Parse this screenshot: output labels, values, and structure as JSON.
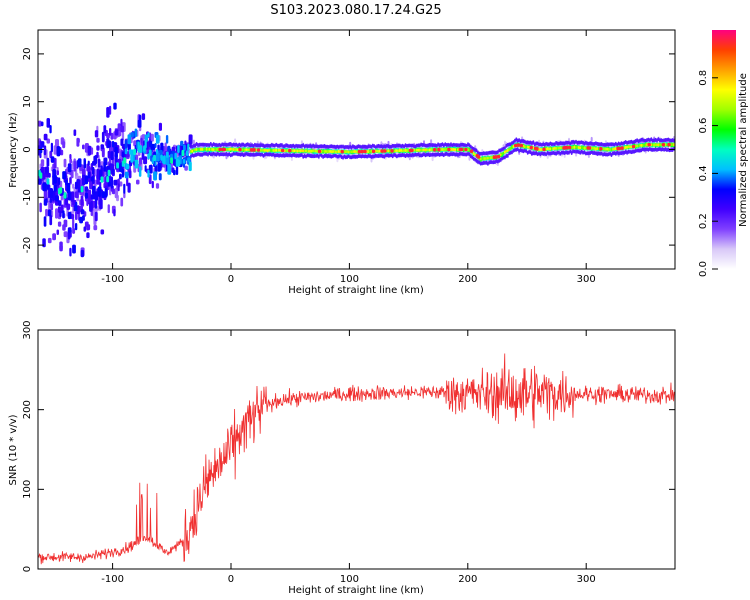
{
  "title": "S103.2023.080.17.24.G25",
  "colors": {
    "snr_line": "#f03030",
    "frame": "#000000"
  },
  "chart_data": [
    {
      "type": "heatmap",
      "xlabel": "Height of straight line (km)",
      "ylabel": "Frequency (Hz)",
      "xlim": [
        -163,
        375
      ],
      "ylim": [
        -25,
        25
      ],
      "xticks": [
        -100,
        0,
        100,
        200,
        300
      ],
      "yticks": [
        -20,
        -10,
        0,
        10,
        20
      ],
      "colorbar": {
        "label": "Normalized spectral amplitude",
        "range": [
          0,
          1
        ],
        "ticks": [
          "0.0",
          "0.2",
          "0.4",
          "0.6",
          "0.8"
        ],
        "colormap": [
          "#ffffff",
          "#d8c8f8",
          "#8040ff",
          "#4000ff",
          "#0000ff",
          "#00c0ff",
          "#00ffc0",
          "#00ff00",
          "#a0ff00",
          "#ffff00",
          "#ffa000",
          "#ff4000",
          "#ff0080"
        ]
      },
      "ridge": [
        {
          "x": -163,
          "y": -5
        },
        {
          "x": -140,
          "y": -10
        },
        {
          "x": -120,
          "y": -8
        },
        {
          "x": -100,
          "y": -4
        },
        {
          "x": -80,
          "y": 0
        },
        {
          "x": -65,
          "y": -1
        },
        {
          "x": -50,
          "y": -2
        },
        {
          "x": -30,
          "y": 0
        },
        {
          "x": 0,
          "y": 0
        },
        {
          "x": 100,
          "y": -0.5
        },
        {
          "x": 180,
          "y": 0
        },
        {
          "x": 200,
          "y": 0
        },
        {
          "x": 210,
          "y": -2
        },
        {
          "x": 225,
          "y": -1.5
        },
        {
          "x": 240,
          "y": 1
        },
        {
          "x": 260,
          "y": 0
        },
        {
          "x": 290,
          "y": 0.5
        },
        {
          "x": 320,
          "y": 0
        },
        {
          "x": 350,
          "y": 1
        },
        {
          "x": 375,
          "y": 1
        }
      ]
    },
    {
      "type": "line",
      "xlabel": "Height of straight line (km)",
      "ylabel": "SNR (10 * v/v)",
      "xlim": [
        -163,
        375
      ],
      "ylim": [
        0,
        300
      ],
      "xticks": [
        -100,
        0,
        100,
        200,
        300
      ],
      "yticks": [
        0,
        100,
        200,
        300
      ],
      "trend": [
        {
          "x": -163,
          "y": 15
        },
        {
          "x": -120,
          "y": 15
        },
        {
          "x": -90,
          "y": 25
        },
        {
          "x": -70,
          "y": 40
        },
        {
          "x": -55,
          "y": 20
        },
        {
          "x": -40,
          "y": 35
        },
        {
          "x": -30,
          "y": 70
        },
        {
          "x": -20,
          "y": 110
        },
        {
          "x": -10,
          "y": 130
        },
        {
          "x": 0,
          "y": 150
        },
        {
          "x": 10,
          "y": 175
        },
        {
          "x": 25,
          "y": 200
        },
        {
          "x": 40,
          "y": 212
        },
        {
          "x": 100,
          "y": 220
        },
        {
          "x": 170,
          "y": 222
        },
        {
          "x": 210,
          "y": 220
        },
        {
          "x": 250,
          "y": 220
        },
        {
          "x": 290,
          "y": 220
        },
        {
          "x": 375,
          "y": 218
        }
      ]
    }
  ]
}
